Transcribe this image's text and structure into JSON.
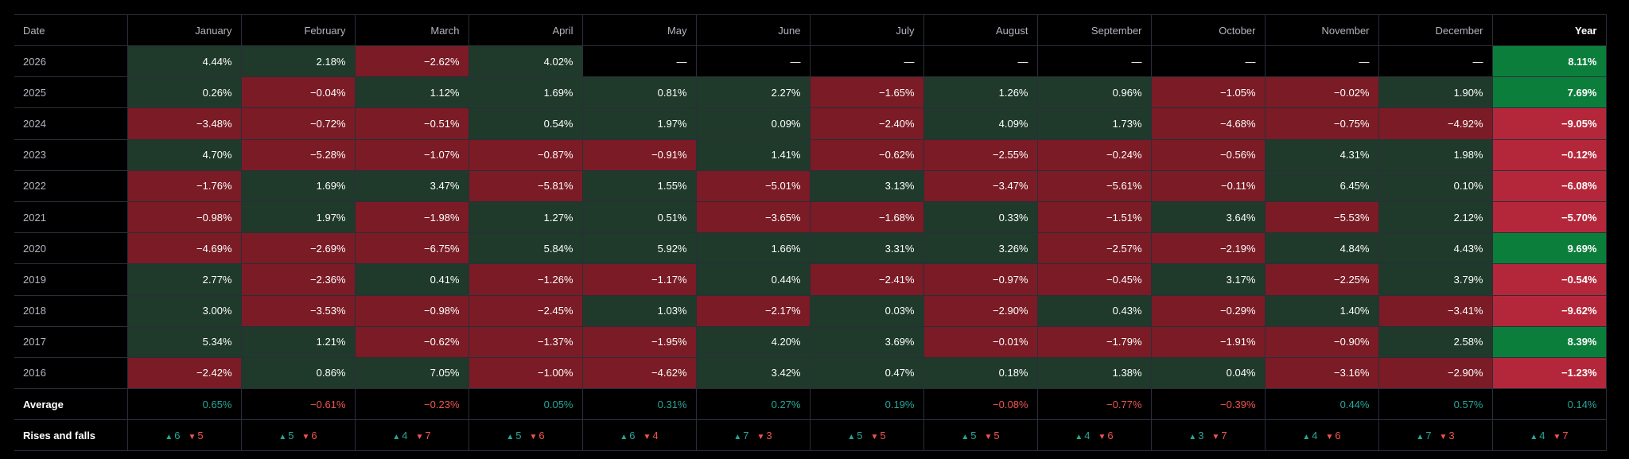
{
  "header": {
    "date_label": "Date",
    "months": [
      "January",
      "February",
      "March",
      "April",
      "May",
      "June",
      "July",
      "August",
      "September",
      "October",
      "November",
      "December"
    ],
    "year_label": "Year"
  },
  "colors": {
    "positive_bg": "#1f3a2b",
    "negative_bg": "#7a1b25",
    "year_positive_bg": "#0c7e3b",
    "year_negative_bg": "#b4273a",
    "up_text": "#26a69a",
    "down_text": "#ef5350"
  },
  "rows": [
    {
      "year": "2026",
      "months": [
        "4.44%",
        "2.18%",
        "−2.62%",
        "4.02%",
        "—",
        "—",
        "—",
        "—",
        "—",
        "—",
        "—",
        "—"
      ],
      "total": "8.11%"
    },
    {
      "year": "2025",
      "months": [
        "0.26%",
        "−0.04%",
        "1.12%",
        "1.69%",
        "0.81%",
        "2.27%",
        "−1.65%",
        "1.26%",
        "0.96%",
        "−1.05%",
        "−0.02%",
        "1.90%"
      ],
      "total": "7.69%"
    },
    {
      "year": "2024",
      "months": [
        "−3.48%",
        "−0.72%",
        "−0.51%",
        "0.54%",
        "1.97%",
        "0.09%",
        "−2.40%",
        "4.09%",
        "1.73%",
        "−4.68%",
        "−0.75%",
        "−4.92%"
      ],
      "total": "−9.05%"
    },
    {
      "year": "2023",
      "months": [
        "4.70%",
        "−5.28%",
        "−1.07%",
        "−0.87%",
        "−0.91%",
        "1.41%",
        "−0.62%",
        "−2.55%",
        "−0.24%",
        "−0.56%",
        "4.31%",
        "1.98%"
      ],
      "total": "−0.12%"
    },
    {
      "year": "2022",
      "months": [
        "−1.76%",
        "1.69%",
        "3.47%",
        "−5.81%",
        "1.55%",
        "−5.01%",
        "3.13%",
        "−3.47%",
        "−5.61%",
        "−0.11%",
        "6.45%",
        "0.10%"
      ],
      "total": "−6.08%"
    },
    {
      "year": "2021",
      "months": [
        "−0.98%",
        "1.97%",
        "−1.98%",
        "1.27%",
        "0.51%",
        "−3.65%",
        "−1.68%",
        "0.33%",
        "−1.51%",
        "3.64%",
        "−5.53%",
        "2.12%"
      ],
      "total": "−5.70%"
    },
    {
      "year": "2020",
      "months": [
        "−4.69%",
        "−2.69%",
        "−6.75%",
        "5.84%",
        "5.92%",
        "1.66%",
        "3.31%",
        "3.26%",
        "−2.57%",
        "−2.19%",
        "4.84%",
        "4.43%"
      ],
      "total": "9.69%"
    },
    {
      "year": "2019",
      "months": [
        "2.77%",
        "−2.36%",
        "0.41%",
        "−1.26%",
        "−1.17%",
        "0.44%",
        "−2.41%",
        "−0.97%",
        "−0.45%",
        "3.17%",
        "−2.25%",
        "3.79%"
      ],
      "total": "−0.54%"
    },
    {
      "year": "2018",
      "months": [
        "3.00%",
        "−3.53%",
        "−0.98%",
        "−2.45%",
        "1.03%",
        "−2.17%",
        "0.03%",
        "−2.90%",
        "0.43%",
        "−0.29%",
        "1.40%",
        "−3.41%"
      ],
      "total": "−9.62%"
    },
    {
      "year": "2017",
      "months": [
        "5.34%",
        "1.21%",
        "−0.62%",
        "−1.37%",
        "−1.95%",
        "4.20%",
        "3.69%",
        "−0.01%",
        "−1.79%",
        "−1.91%",
        "−0.90%",
        "2.58%"
      ],
      "total": "8.39%"
    },
    {
      "year": "2016",
      "months": [
        "−2.42%",
        "0.86%",
        "7.05%",
        "−1.00%",
        "−4.62%",
        "3.42%",
        "0.47%",
        "0.18%",
        "1.38%",
        "0.04%",
        "−3.16%",
        "−2.90%"
      ],
      "total": "−1.23%"
    }
  ],
  "average": {
    "label": "Average",
    "months": [
      "0.65%",
      "−0.61%",
      "−0.23%",
      "0.05%",
      "0.31%",
      "0.27%",
      "0.19%",
      "−0.08%",
      "−0.77%",
      "−0.39%",
      "0.44%",
      "0.57%"
    ],
    "total": "0.14%"
  },
  "rises_falls": {
    "label": "Rises and falls",
    "up_icon": "triangle-up-icon",
    "down_icon": "triangle-down-icon",
    "months": [
      {
        "rises": "6",
        "falls": "5"
      },
      {
        "rises": "5",
        "falls": "6"
      },
      {
        "rises": "4",
        "falls": "7"
      },
      {
        "rises": "5",
        "falls": "6"
      },
      {
        "rises": "6",
        "falls": "4"
      },
      {
        "rises": "7",
        "falls": "3"
      },
      {
        "rises": "5",
        "falls": "5"
      },
      {
        "rises": "5",
        "falls": "5"
      },
      {
        "rises": "4",
        "falls": "6"
      },
      {
        "rises": "3",
        "falls": "7"
      },
      {
        "rises": "4",
        "falls": "6"
      },
      {
        "rises": "7",
        "falls": "3"
      }
    ],
    "total": {
      "rises": "4",
      "falls": "7"
    }
  }
}
